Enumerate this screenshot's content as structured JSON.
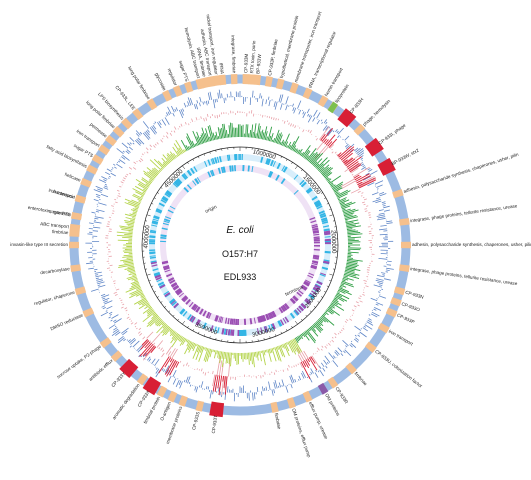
{
  "colors": {
    "backbone": "#9dbbe3",
    "island_small": "#f5c08d",
    "island_large": "#d81f35",
    "island_purple": "#8b5aa8",
    "island_green": "#7cc04f",
    "gc_content": "#5f86c7",
    "gc_skew_outer": "#d81f35",
    "gc_skew_inner_a": "#2f9e44",
    "gc_skew_inner_b": "#b4d44b",
    "genes_cyan": "#33b5e5",
    "genes_purple": "#9b4fb3",
    "scale": "#222222"
  },
  "center": {
    "organism": "E. coli",
    "serotype": "O157:H7",
    "strain": "EDL933"
  },
  "scale_ticks": [
    "1000000",
    "1500000",
    "2000000",
    "2500000",
    "3000000",
    "3500000",
    "4000000",
    "4500000"
  ],
  "scale_annotations": [
    "origin",
    "terminus"
  ],
  "features": [
    {
      "label": "tRNA, fimbriae",
      "kind": "small",
      "angle": 102
    },
    {
      "label": "adhesin, ABC transport",
      "kind": "small",
      "angle": 100
    },
    {
      "label": "tRNA",
      "kind": "small",
      "angle": 96
    },
    {
      "label": "RTX toxin, porin",
      "kind": "small",
      "angle": 86
    },
    {
      "label": "hypothetical, membrane protein",
      "kind": "small",
      "angle": 76
    },
    {
      "label": "membrane transporter, iron transport",
      "kind": "small",
      "angle": 71
    },
    {
      "label": "tRNA, transcriptional regulator",
      "kind": "small",
      "angle": 66
    },
    {
      "label": "hemin transport",
      "kind": "small",
      "angle": 60
    },
    {
      "label": "lipoprotein",
      "kind": "small",
      "angle": 56
    },
    {
      "label": "CP-933H",
      "kind": "large",
      "angle": 50
    },
    {
      "label": "phage, hemolysin",
      "kind": "small",
      "angle": 44
    },
    {
      "label": "CP-933I, phage",
      "kind": "large",
      "angle": 36
    },
    {
      "label": "BP-933W, stx2",
      "kind": "large",
      "angle": 28
    },
    {
      "label": "adhesin, polysaccharide synthesis, chaperones, usher, pilin",
      "kind": "small",
      "angle": 18
    },
    {
      "label": "integrase, phage proteins, tellurite resistance, urease",
      "kind": "small",
      "angle": 8
    },
    {
      "label": "adhesin, polysaccharide synthesis, chaperones, usher, pilin",
      "kind": "small",
      "angle": 0
    },
    {
      "label": "integrase, phage proteins, tellurite resistance, urease",
      "kind": "small",
      "angle": -8
    },
    {
      "label": "CP-933N",
      "kind": "small",
      "angle": -16
    },
    {
      "label": "CP-933O",
      "kind": "small",
      "angle": -20
    },
    {
      "label": "CP-933P",
      "kind": "small",
      "angle": -24
    },
    {
      "label": "iron transport",
      "kind": "small",
      "angle": -30
    },
    {
      "label": "CP-933U, colonization factor",
      "kind": "small",
      "angle": -38
    },
    {
      "label": "fimbriae",
      "kind": "small",
      "angle": -48
    },
    {
      "label": "CP-933R",
      "kind": "small",
      "angle": -56
    },
    {
      "label": "OM proteins",
      "kind": "purple",
      "angle": -60
    },
    {
      "label": "efflux pump, urease",
      "kind": "small",
      "angle": -66
    },
    {
      "label": "OM proteins, efflux pump",
      "kind": "small",
      "angle": -72
    },
    {
      "label": "fimbriae",
      "kind": "small",
      "angle": -78
    },
    {
      "label": "CP-933T",
      "kind": "large",
      "angle": -98
    },
    {
      "label": "CP-933S",
      "kind": "small",
      "angle": -104
    },
    {
      "label": "membrane proteins",
      "kind": "small",
      "angle": -110
    },
    {
      "label": "O-antigen",
      "kind": "small",
      "angle": -114
    },
    {
      "label": "fimbrial protein",
      "kind": "small",
      "angle": -118
    },
    {
      "label": "CP-933X",
      "kind": "large",
      "angle": -122
    },
    {
      "label": "aromatic degradation",
      "kind": "small",
      "angle": -126
    },
    {
      "label": "CP-933Y",
      "kind": "large",
      "angle": -132
    },
    {
      "label": "antibiotic efflux",
      "kind": "small",
      "angle": -138
    },
    {
      "label": "sucrose uptake, P2-phage",
      "kind": "small",
      "angle": -144
    },
    {
      "label": "DMSO reductase",
      "kind": "small",
      "angle": -156
    },
    {
      "label": "regulator, chaperone",
      "kind": "small",
      "angle": -164
    },
    {
      "label": "decarboxylase",
      "kind": "small",
      "angle": -172
    },
    {
      "label": "invasin-like type III secretion",
      "kind": "small",
      "angle": -180
    },
    {
      "label": "ABC transport",
      "kind": "small",
      "angle": -186
    },
    {
      "label": "enterotoxin, cytotoxin",
      "kind": "small",
      "angle": -190
    },
    {
      "label": "iron transport",
      "kind": "small",
      "angle": -196
    },
    {
      "label": "sugar PTS",
      "kind": "small",
      "angle": 170
    },
    {
      "label": "fimbriae",
      "kind": "small",
      "angle": 176
    },
    {
      "label": "bacteriocin",
      "kind": "small",
      "angle": 164
    },
    {
      "label": "helicase",
      "kind": "small",
      "angle": 158
    },
    {
      "label": "fatty acid biosynthesis",
      "kind": "small",
      "angle": 153
    },
    {
      "label": "sugar PTS",
      "kind": "small",
      "angle": 149
    },
    {
      "label": "iron transport",
      "kind": "small",
      "angle": 145
    },
    {
      "label": "permease",
      "kind": "small",
      "angle": 141
    },
    {
      "label": "long polar fimbriae",
      "kind": "small",
      "angle": 137
    },
    {
      "label": "LPS biosynthesis",
      "kind": "small",
      "angle": 133
    },
    {
      "label": "CP-933L, LEE",
      "kind": "small",
      "angle": 128
    },
    {
      "label": "long polar fimbriae",
      "kind": "small",
      "angle": 122
    },
    {
      "label": "glycoside",
      "kind": "small",
      "angle": 116
    },
    {
      "label": "regulator",
      "kind": "small",
      "angle": 112
    },
    {
      "label": "sugar PTS",
      "kind": "small",
      "angle": 108
    },
    {
      "label": "hemolysin, ABC transport",
      "kind": "small",
      "angle": 104
    },
    {
      "label": "nickel transport, iron regulator",
      "kind": "small",
      "angle": 98
    },
    {
      "label": "integrase, fimbriae",
      "kind": "small",
      "angle": 92
    },
    {
      "label": "CP-933M",
      "kind": "small",
      "angle": 88
    },
    {
      "label": "BP-933W",
      "kind": "small",
      "angle": 84
    },
    {
      "label": "CP-933P, fimbriae",
      "kind": "small",
      "angle": 80
    }
  ]
}
